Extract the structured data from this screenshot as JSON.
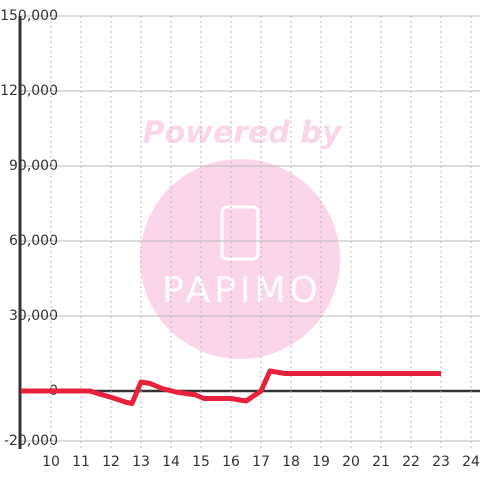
{
  "chart_data": {
    "type": "line",
    "annotations": [
      "Powered by",
      "PAPIMO"
    ],
    "x": [
      9,
      11.3,
      11.7,
      12.0,
      12.5,
      12.7,
      13.0,
      13.3,
      13.7,
      14.2,
      14.8,
      15.1,
      16.0,
      16.5,
      17.0,
      17.3,
      17.8,
      23.0
    ],
    "series": [
      {
        "color": "#e8213a",
        "values": [
          0,
          0,
          -1500,
          -2500,
          -4500,
          -5000,
          3600,
          3000,
          1000,
          -500,
          -1500,
          -3000,
          -3000,
          -4000,
          0,
          8000,
          7000,
          7000
        ]
      }
    ],
    "xlim": [
      9,
      24.3
    ],
    "xticks": [
      10,
      11,
      12,
      13,
      14,
      15,
      16,
      17,
      18,
      19,
      20,
      21,
      22,
      23,
      24
    ],
    "ylim": [
      -20000,
      150000
    ],
    "yticks": [
      {
        "value": -20000,
        "label": "-20,000"
      },
      0,
      {
        "value": 30000,
        "label": "30,000"
      },
      {
        "value": 60000,
        "label": "60,000"
      },
      {
        "value": 90000,
        "label": "90,000"
      },
      {
        "value": 120000,
        "label": "120,000"
      },
      {
        "value": 150000,
        "label": "150,000"
      }
    ],
    "grid": true
  }
}
